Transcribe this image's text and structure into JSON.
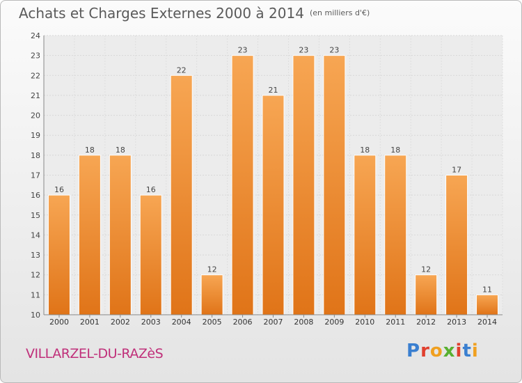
{
  "chart_data": {
    "type": "bar",
    "title": "Achats et Charges Externes 2000 à 2014",
    "subtitle": "(en milliers d'€)",
    "categories": [
      "2000",
      "2001",
      "2002",
      "2003",
      "2004",
      "2005",
      "2006",
      "2007",
      "2008",
      "2009",
      "2010",
      "2011",
      "2012",
      "2013",
      "2014"
    ],
    "values": [
      16,
      18,
      18,
      16,
      22,
      12,
      23,
      21,
      23,
      23,
      18,
      18,
      12,
      17,
      11
    ],
    "ylim": [
      10,
      24
    ],
    "yticks": [
      10,
      11,
      12,
      13,
      14,
      15,
      16,
      17,
      18,
      19,
      20,
      21,
      22,
      23,
      24
    ],
    "grid": true,
    "bar_color": "#f08a2c",
    "xlabel": "",
    "ylabel": ""
  },
  "footer": {
    "town": "VILLARZEL-DU-RAZèS",
    "logo": "Proxiti"
  },
  "colors": {
    "town_text": "#c0307a",
    "logo_letters": [
      "#3a7fd0",
      "#e0402e",
      "#f0a020",
      "#58b030",
      "#e0402e",
      "#3a7fd0",
      "#f0a020"
    ]
  }
}
